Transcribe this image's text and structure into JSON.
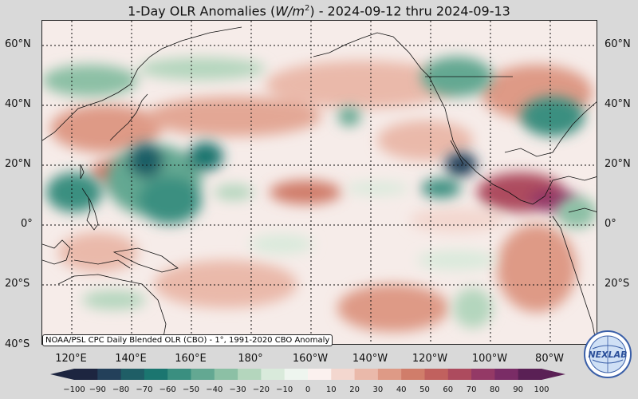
{
  "title": "1-Day OLR Anomalies (W/m²) - 2024-09-12 thru 2024-09-13",
  "title_parts": {
    "prefix": "1-Day OLR Anomalies (",
    "unit_base": "W/m",
    "unit_exp": "2",
    "suffix": ") - 2024-09-12 thru 2024-09-13"
  },
  "source_note": "NOAA/PSL CPC Daily Blended OLR (CBO) - 1°, 1991-2020 CBO Anomaly",
  "logo_text": "NEXLAB",
  "lat_labels": [
    "60°N",
    "40°N",
    "20°N",
    "0°",
    "20°S",
    "40°S"
  ],
  "lon_labels": [
    "120°E",
    "140°E",
    "160°E",
    "180°",
    "160°W",
    "140°W",
    "120°W",
    "100°W",
    "80°W"
  ],
  "colorbar": {
    "ticks": [
      "−100",
      "−90",
      "−80",
      "−70",
      "−60",
      "−50",
      "−40",
      "−30",
      "−20",
      "−10",
      "0",
      "10",
      "20",
      "30",
      "40",
      "50",
      "60",
      "70",
      "80",
      "90",
      "100"
    ],
    "colors_negative": [
      "#1d2540",
      "#23405a",
      "#1f5e66",
      "#1b7670",
      "#3a8f80",
      "#63a892",
      "#8cc0a5",
      "#b4d6bd",
      "#d9eadb",
      "#eef5ef"
    ],
    "colors_positive": [
      "#fbf1ef",
      "#f3d7cf",
      "#eab9aa",
      "#de9a86",
      "#d07d6a",
      "#c1615e",
      "#ad4b5e",
      "#943966",
      "#7a2c66",
      "#5a2055"
    ]
  },
  "map": {
    "background_color": "#f6ece9",
    "grid_color": "#111111",
    "coastline_color": "#111111"
  }
}
